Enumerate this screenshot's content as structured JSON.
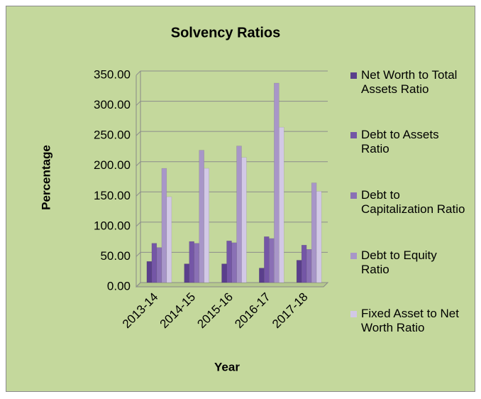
{
  "chart_data": {
    "type": "bar",
    "title": "Solvency Ratios",
    "x_label": "Year",
    "y_label": "Percentage",
    "categories": [
      "2013-14",
      "2014-15",
      "2015-16",
      "2016-17",
      "2017-18"
    ],
    "series": [
      {
        "name": "Net Worth to Total Assets Ratio",
        "color": "#5a3f8c",
        "values": [
          35,
          31,
          31,
          24,
          37
        ]
      },
      {
        "name": "Debt to Assets Ratio",
        "color": "#7456a6",
        "values": [
          65,
          68,
          69,
          76,
          62
        ]
      },
      {
        "name": "Debt to Capitalization Ratio",
        "color": "#8a70b5",
        "values": [
          58,
          65,
          66,
          73,
          55
        ]
      },
      {
        "name": "Debt to Equity Ratio",
        "color": "#a896c8",
        "values": [
          189,
          219,
          226,
          330,
          165
        ]
      },
      {
        "name": "Fixed Asset to Net Worth Ratio",
        "color": "#d2c8e6",
        "values": [
          142,
          189,
          207,
          257,
          151
        ]
      }
    ],
    "ylim": [
      0,
      350
    ],
    "yticks": [
      {
        "value": 0,
        "label": "0.00"
      },
      {
        "value": 50,
        "label": "50.00"
      },
      {
        "value": 100,
        "label": "100.00"
      },
      {
        "value": 150,
        "label": "150.00"
      },
      {
        "value": 200,
        "label": "200.00"
      },
      {
        "value": 250,
        "label": "250.00"
      },
      {
        "value": 300,
        "label": "300.00"
      },
      {
        "value": 350,
        "label": "350.00"
      }
    ],
    "grid": true
  }
}
